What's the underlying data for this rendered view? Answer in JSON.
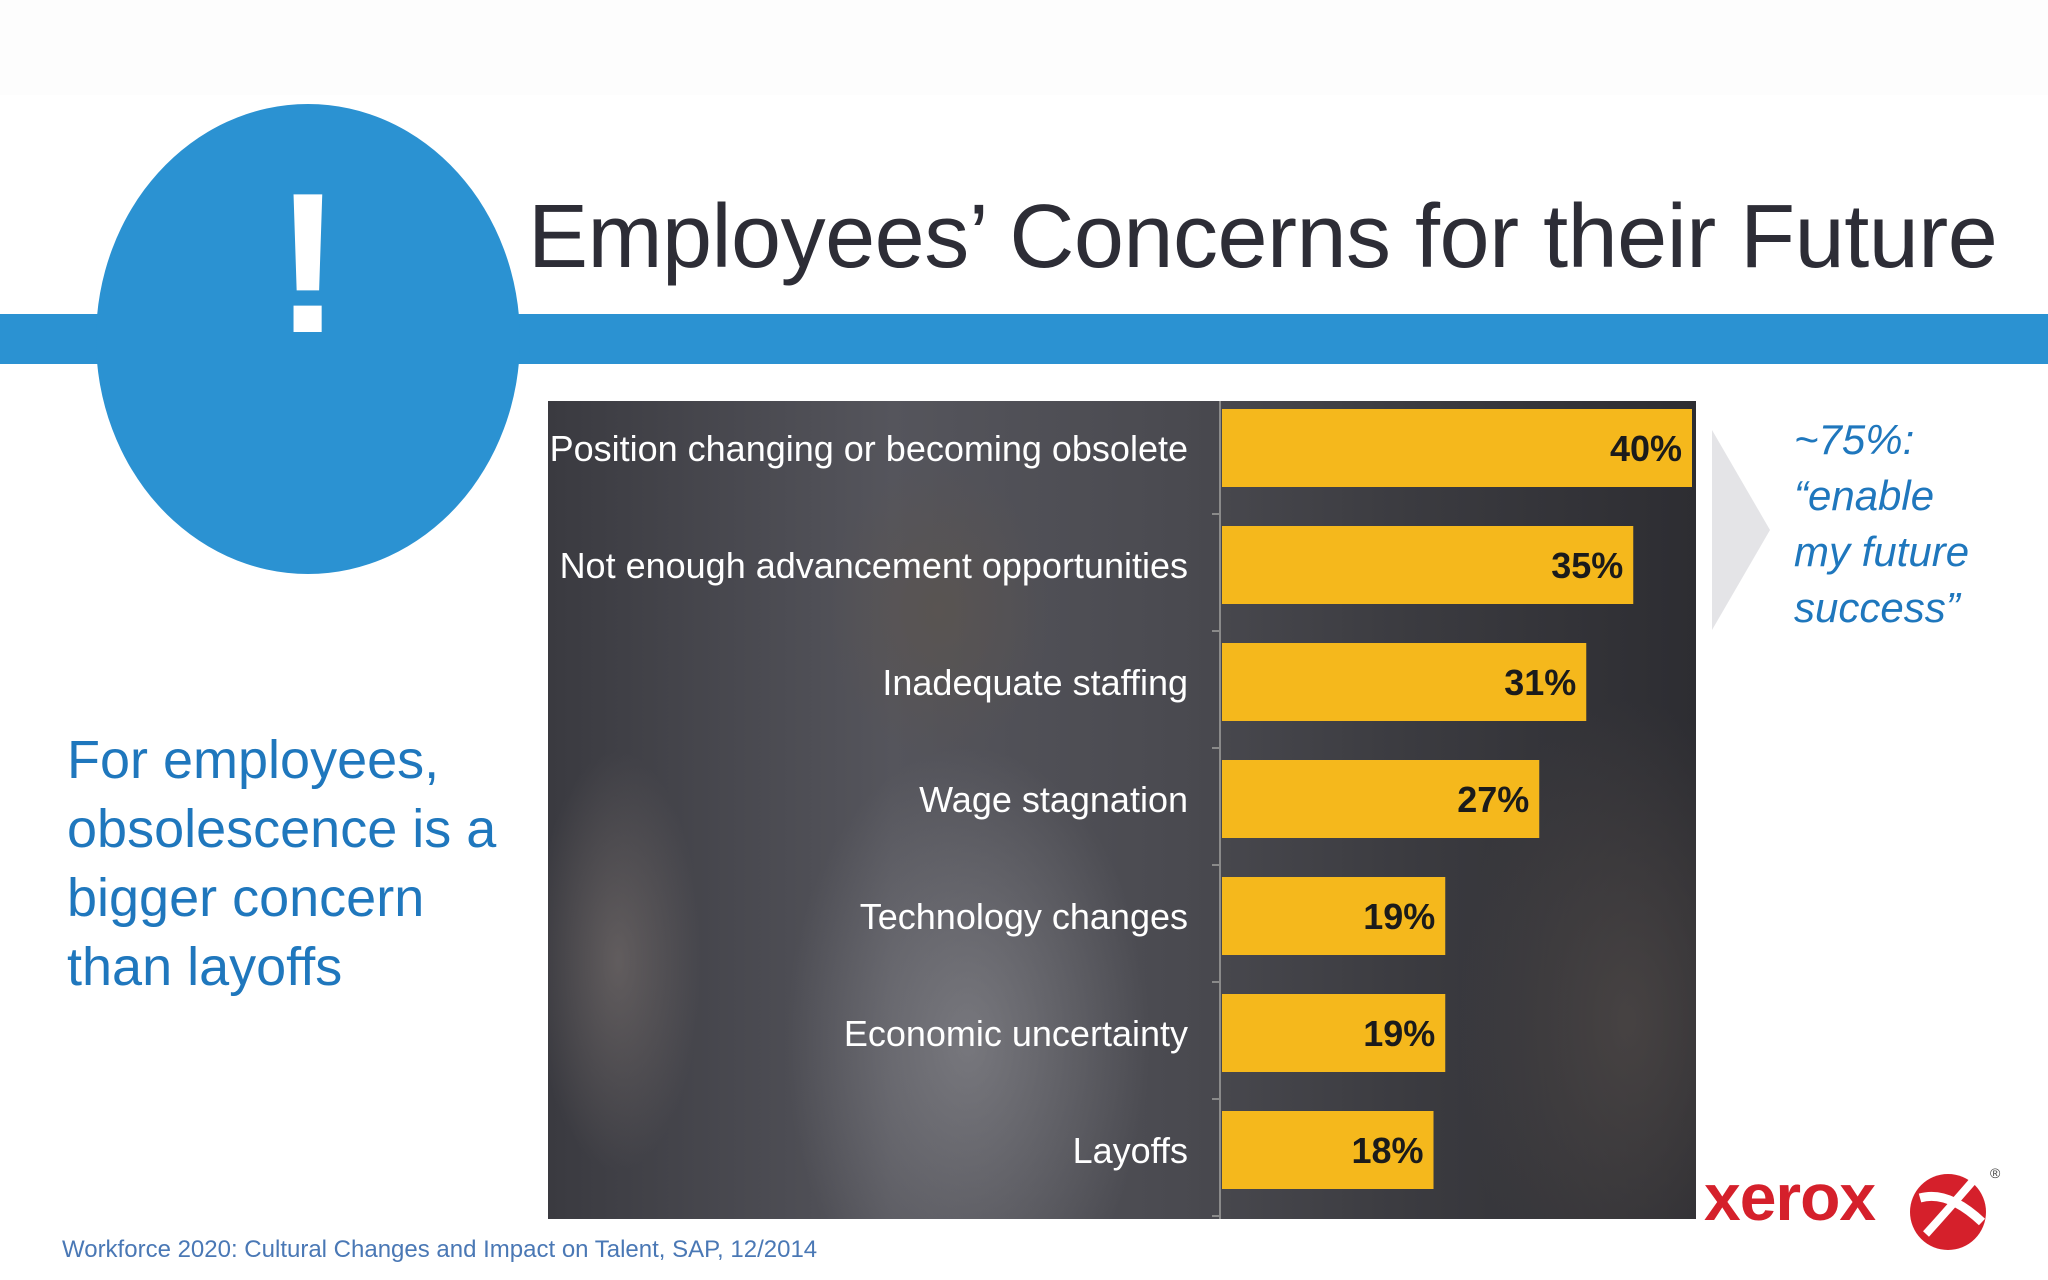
{
  "slide": {
    "title": "Employees’ Concerns for their Future",
    "alert_symbol": "!",
    "takeaway": "For employees, obsolescence is a bigger concern than layoffs",
    "callout": [
      "~75%:",
      "“enable",
      "my future",
      "success”"
    ],
    "source": "Workforce 2020: Cultural Changes and Impact on Talent, SAP, 12/2014",
    "logo_text": "xerox",
    "logo_mark": "®"
  },
  "colors": {
    "accent": "#2b92d2",
    "text_blue": "#1f77bd",
    "bar": "#f5b81c",
    "logo_red": "#d5202b"
  },
  "chart_data": {
    "type": "bar",
    "orientation": "horizontal",
    "categories": [
      "Position changing or becoming obsolete",
      "Not enough advancement opportunities",
      "Inadequate staffing",
      "Wage stagnation",
      "Technology changes",
      "Economic uncertainty",
      "Layoffs"
    ],
    "values": [
      40,
      35,
      31,
      27,
      19,
      19,
      18
    ],
    "value_labels": [
      "40%",
      "35%",
      "31%",
      "27%",
      "19%",
      "19%",
      "18%"
    ],
    "unit": "%",
    "xlim": [
      0,
      40
    ]
  }
}
